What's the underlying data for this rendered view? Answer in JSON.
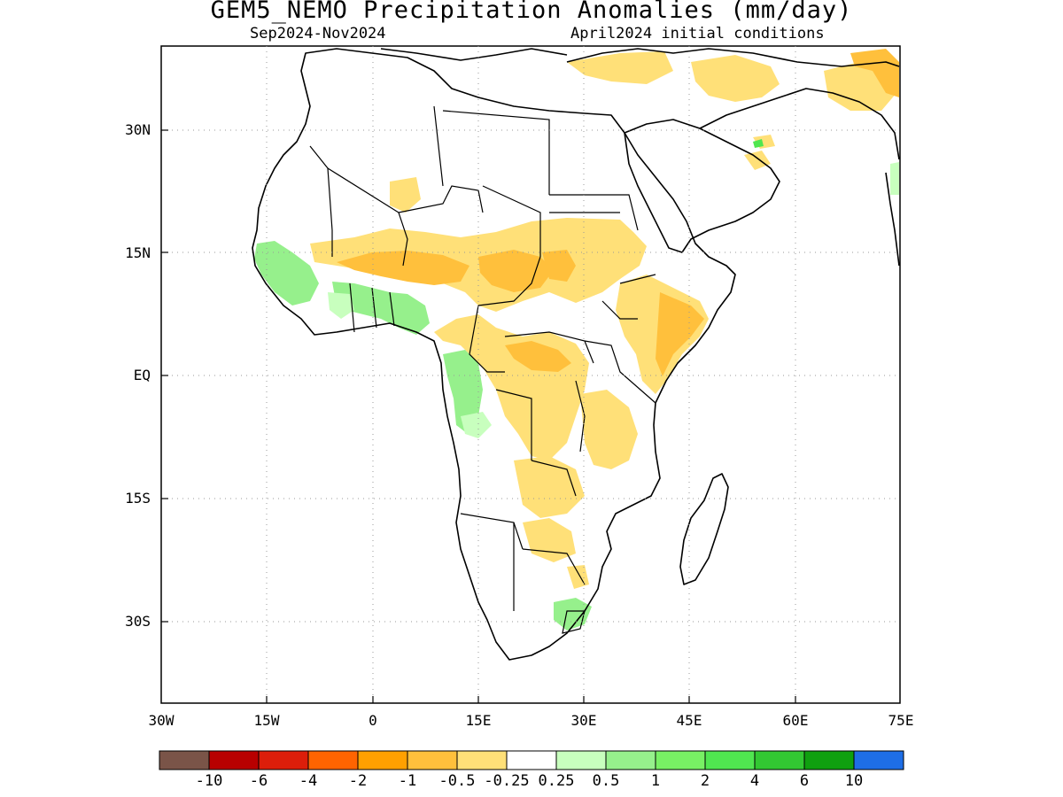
{
  "title": "GEM5_NEMO Precipitation Anomalies (mm/day)",
  "subtitle_left": "Sep2024-Nov2024",
  "subtitle_right": "April2024 initial conditions",
  "map": {
    "region": "Africa",
    "lon_range": [
      -30,
      75
    ],
    "lat_range": [
      -40,
      43
    ],
    "grid": true,
    "lat_ticks": [
      "30N",
      "15N",
      "EQ",
      "15S",
      "30S"
    ],
    "lon_ticks": [
      "30W",
      "15W",
      "0",
      "15E",
      "30E",
      "45E",
      "60E",
      "75E"
    ]
  },
  "colorbar": {
    "colors": [
      "#7a5448",
      "#b80000",
      "#dc1e0a",
      "#ff6400",
      "#ffa000",
      "#ffc03c",
      "#ffe078",
      "#ffffff",
      "#c8ffbe",
      "#96f08c",
      "#78f064",
      "#50e650",
      "#32c832",
      "#0fa00f",
      "#1e6ee6"
    ],
    "labels": [
      "-10",
      "-6",
      "-4",
      "-2",
      "-1",
      "-0.5",
      "-0.25",
      "0.25",
      "0.5",
      "1",
      "2",
      "4",
      "6",
      "10"
    ]
  }
}
